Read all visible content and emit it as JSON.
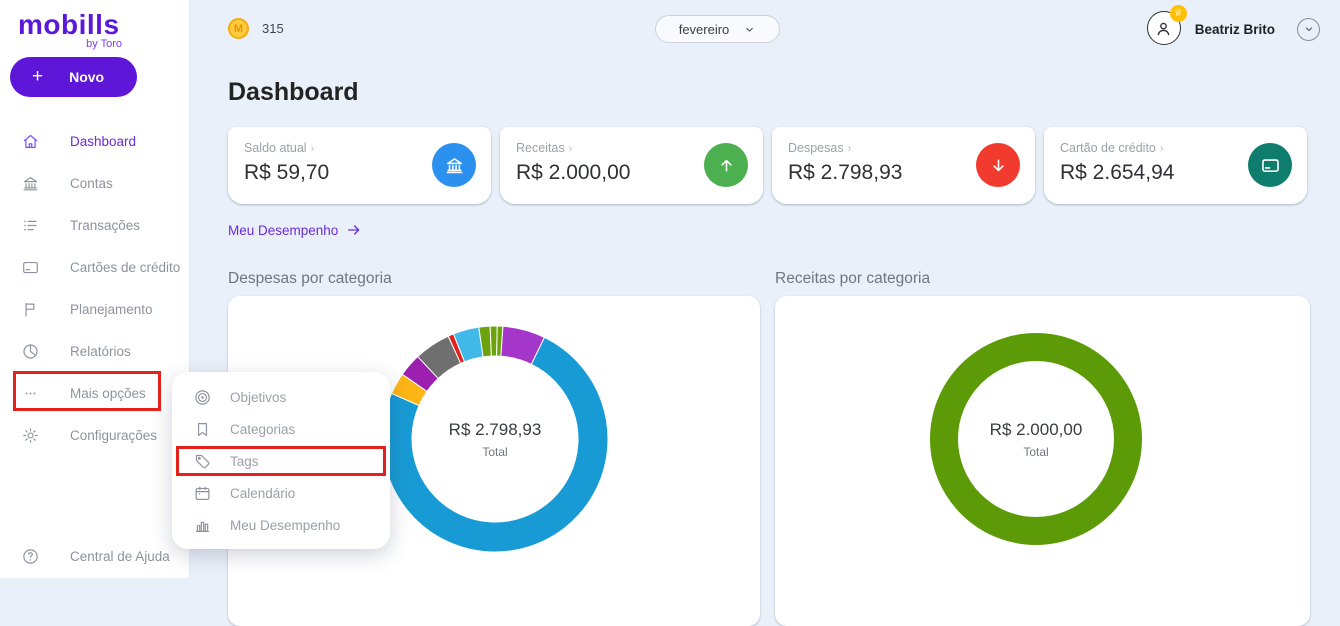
{
  "sidebar": {
    "logo": "mobills",
    "logo_sub": "by Toro",
    "new_button_label": "Novo",
    "items": [
      {
        "label": "Dashboard",
        "icon": "home-icon",
        "active": true
      },
      {
        "label": "Contas",
        "icon": "bank-icon",
        "active": false
      },
      {
        "label": "Transações",
        "icon": "transactions-list-icon",
        "active": false
      },
      {
        "label": "Cartões de crédito",
        "icon": "credit-card-icon",
        "active": false
      },
      {
        "label": "Planejamento",
        "icon": "flag-icon",
        "active": false
      },
      {
        "label": "Relatórios",
        "icon": "pie-report-icon",
        "active": false
      },
      {
        "label": "Mais opções",
        "icon": "ellipsis-icon",
        "active": false,
        "highlighted": true
      },
      {
        "label": "Configurações",
        "icon": "gear-icon",
        "active": false
      }
    ],
    "help_label": "Central de Ajuda"
  },
  "more_options_menu": {
    "items": [
      {
        "label": "Objetivos",
        "icon": "target-icon",
        "highlighted": false
      },
      {
        "label": "Categorias",
        "icon": "bookmark-icon",
        "highlighted": false
      },
      {
        "label": "Tags",
        "icon": "tag-icon",
        "highlighted": true
      },
      {
        "label": "Calendário",
        "icon": "calendar-icon",
        "highlighted": false
      },
      {
        "label": "Meu Desempenho",
        "icon": "bar-chart-icon",
        "highlighted": false
      }
    ]
  },
  "header": {
    "coin_count": "315",
    "month": "fevereiro",
    "user_name": "Beatriz Brito"
  },
  "page": {
    "title": "Dashboard",
    "performance_link": "Meu Desempenho"
  },
  "summary_cards": [
    {
      "label": "Saldo atual",
      "value": "R$ 59,70",
      "icon": "bank-icon",
      "accent_color": "#2B90EE"
    },
    {
      "label": "Receitas",
      "value": "R$ 2.000,00",
      "icon": "arrow-up-icon",
      "accent_color": "#4CAF50"
    },
    {
      "label": "Despesas",
      "value": "R$ 2.798,93",
      "icon": "arrow-down-icon",
      "accent_color": "#F23B2F"
    },
    {
      "label": "Cartão de crédito",
      "value": "R$ 2.654,94",
      "icon": "credit-card-icon",
      "accent_color": "#0E7D6D"
    }
  ],
  "chart_data": [
    {
      "type": "donut",
      "title": "Despesas por categoria",
      "center_value": "R$ 2.798,93",
      "center_label": "Total",
      "start_angle_deg": 4,
      "segments": [
        {
          "color": "#A437C9",
          "value_pct": 6.1
        },
        {
          "color": "#189BD5",
          "value_pct": 74.4
        },
        {
          "color": "#FDB515",
          "value_pct": 3.1
        },
        {
          "color": "#9C1FB0",
          "value_pct": 3.3
        },
        {
          "color": "#6F6F6F",
          "value_pct": 5.2
        },
        {
          "color": "#E0211C",
          "value_pct": 0.8
        },
        {
          "color": "#41B9E9",
          "value_pct": 3.7
        },
        {
          "color": "#6CA30D",
          "value_pct": 1.6
        },
        {
          "color": "#6CA30D",
          "value_pct": 1.0
        },
        {
          "color": "#6CA30D",
          "value_pct": 0.8
        }
      ]
    },
    {
      "type": "donut",
      "title": "Receitas por categoria",
      "center_value": "R$ 2.000,00",
      "center_label": "Total",
      "start_angle_deg": 0,
      "segments": [
        {
          "color": "#5C9B07",
          "value_pct": 100
        }
      ]
    }
  ]
}
